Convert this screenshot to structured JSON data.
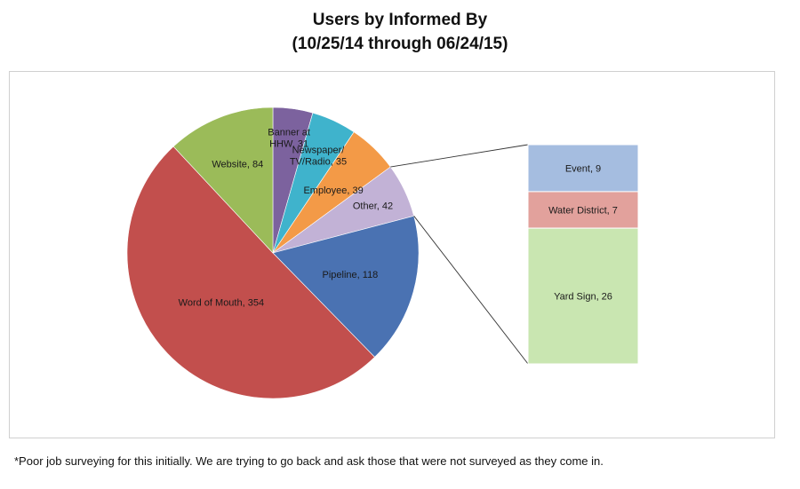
{
  "chart_data": {
    "type": "pie",
    "title": "Users by Informed By",
    "subtitle": "(10/25/14 through 06/24/15)",
    "slices": [
      {
        "label": "Banner at HHW",
        "value": 31,
        "color": "#7c629e"
      },
      {
        "label": "Newspaper/ TV/Radio",
        "value": 35,
        "color": "#3fb3cc"
      },
      {
        "label": "Employee",
        "value": 39,
        "color": "#f39a47"
      },
      {
        "label": "Other",
        "value": 42,
        "color": "#c2b2d6"
      },
      {
        "label": "Pipeline",
        "value": 118,
        "color": "#4a72b2"
      },
      {
        "label": "Word of Mouth",
        "value": 354,
        "color": "#c24f4d"
      },
      {
        "label": "Website",
        "value": 84,
        "color": "#9bbb59"
      }
    ],
    "other_breakdown": [
      {
        "label": "Event",
        "value": 9,
        "color": "#a5bde0"
      },
      {
        "label": "Water District",
        "value": 7,
        "color": "#e2a19c"
      },
      {
        "label": "Yard Sign",
        "value": 26,
        "color": "#c9e6b1"
      }
    ],
    "footnote": "*Poor job surveying for this initially. We are trying to go back and ask those  that were not surveyed as they come in."
  }
}
